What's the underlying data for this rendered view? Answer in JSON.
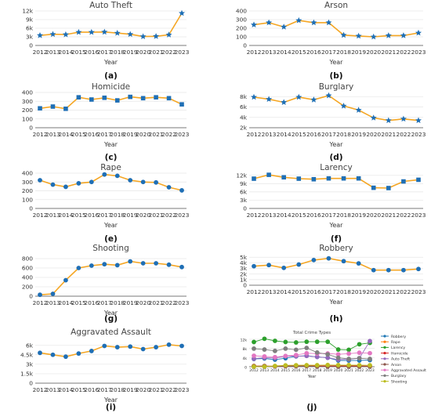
{
  "colors": {
    "line": "#f5a623",
    "marker": "#1f6fb5",
    "axis": "#555555",
    "grid": "#e6e6e6",
    "tick_text": "#333333",
    "title_text": "#444444"
  },
  "chart_data": [
    {
      "id": "a",
      "type": "line",
      "title": "Auto Theft",
      "xlabel": "Year",
      "ylabel": "",
      "panel_label": "(a)",
      "categories": [
        "2012",
        "2013",
        "2014",
        "2015",
        "2016",
        "2017",
        "2018",
        "2019",
        "2020",
        "2021",
        "2022",
        "2023"
      ],
      "values": [
        3500,
        3900,
        3800,
        4600,
        4600,
        4700,
        4300,
        3900,
        3100,
        3200,
        3700,
        11200
      ],
      "ylim": [
        0,
        12000
      ],
      "yticks": [
        0,
        3000,
        6000,
        9000,
        12000
      ],
      "ytick_labels": [
        "0",
        "3k",
        "6k",
        "9k",
        "12k"
      ],
      "marker": "star",
      "grid": true
    },
    {
      "id": "b",
      "type": "line",
      "title": "Arson",
      "xlabel": "Year",
      "ylabel": "",
      "panel_label": "(b)",
      "categories": [
        "2012",
        "2013",
        "2014",
        "2015",
        "2016",
        "2017",
        "2018",
        "2019",
        "2020",
        "2021",
        "2022",
        "2023"
      ],
      "values": [
        240,
        265,
        215,
        290,
        265,
        265,
        120,
        110,
        100,
        115,
        115,
        145
      ],
      "ylim": [
        0,
        400
      ],
      "yticks": [
        0,
        100,
        200,
        300,
        400
      ],
      "ytick_labels": [
        "0",
        "100",
        "200",
        "300",
        "400"
      ],
      "marker": "star",
      "grid": true
    },
    {
      "id": "c",
      "type": "line",
      "title": "Homicide",
      "xlabel": "Year",
      "ylabel": "",
      "panel_label": "(c)",
      "categories": [
        "2012",
        "2013",
        "2014",
        "2015",
        "2016",
        "2017",
        "2018",
        "2019",
        "2020",
        "2021",
        "2022",
        "2023"
      ],
      "values": [
        220,
        240,
        215,
        345,
        320,
        340,
        310,
        350,
        335,
        345,
        335,
        265
      ],
      "ylim": [
        0,
        400
      ],
      "yticks": [
        0,
        100,
        200,
        300,
        400
      ],
      "ytick_labels": [
        "0",
        "100",
        "200",
        "300",
        "400"
      ],
      "marker": "square",
      "grid": true
    },
    {
      "id": "d",
      "type": "line",
      "title": "Burglary",
      "xlabel": "Year",
      "ylabel": "",
      "panel_label": "(d)",
      "categories": [
        "2012",
        "2013",
        "2014",
        "2015",
        "2016",
        "2017",
        "2018",
        "2019",
        "2020",
        "2021",
        "2022",
        "2023"
      ],
      "values": [
        7900,
        7500,
        6900,
        7900,
        7400,
        8200,
        6200,
        5400,
        3900,
        3400,
        3700,
        3400
      ],
      "ylim": [
        2000,
        8800
      ],
      "yticks": [
        2000,
        4000,
        6000,
        8000
      ],
      "ytick_labels": [
        "2k",
        "4k",
        "6k",
        "8k"
      ],
      "marker": "star",
      "grid": true
    },
    {
      "id": "e",
      "type": "line",
      "title": "Rape",
      "xlabel": "Year",
      "ylabel": "",
      "panel_label": "(e)",
      "categories": [
        "2012",
        "2013",
        "2014",
        "2015",
        "2016",
        "2017",
        "2018",
        "2019",
        "2020",
        "2021",
        "2022",
        "2023"
      ],
      "values": [
        320,
        270,
        245,
        285,
        300,
        385,
        370,
        320,
        300,
        295,
        240,
        205
      ],
      "ylim": [
        0,
        400
      ],
      "yticks": [
        0,
        100,
        200,
        300,
        400
      ],
      "ytick_labels": [
        "0",
        "100",
        "200",
        "300",
        "400"
      ],
      "marker": "circle",
      "grid": true
    },
    {
      "id": "f",
      "type": "line",
      "title": "Larency",
      "xlabel": "Year",
      "ylabel": "",
      "panel_label": "(f)",
      "categories": [
        "2012",
        "2013",
        "2014",
        "2015",
        "2016",
        "2017",
        "2018",
        "2019",
        "2020",
        "2021",
        "2022",
        "2023"
      ],
      "values": [
        10800,
        12200,
        11300,
        10800,
        10600,
        10900,
        10900,
        10900,
        7500,
        7400,
        9800,
        10400
      ],
      "ylim": [
        0,
        12800
      ],
      "yticks": [
        0,
        3000,
        6000,
        9000,
        12000
      ],
      "ytick_labels": [
        "0",
        "3k",
        "6k",
        "9k",
        "12k"
      ],
      "marker": "square",
      "grid": true
    },
    {
      "id": "g",
      "type": "line",
      "title": "Shooting",
      "xlabel": "Year",
      "ylabel": "",
      "panel_label": "(g)",
      "categories": [
        "2012",
        "2013",
        "2014",
        "2015",
        "2016",
        "2017",
        "2018",
        "2019",
        "2020",
        "2021",
        "2022",
        "2023"
      ],
      "values": [
        30,
        50,
        340,
        600,
        650,
        680,
        660,
        740,
        700,
        700,
        670,
        620
      ],
      "ylim": [
        0,
        900
      ],
      "yticks": [
        0,
        200,
        400,
        600,
        800
      ],
      "ytick_labels": [
        "0",
        "200",
        "400",
        "600",
        "800"
      ],
      "marker": "circle",
      "grid": true
    },
    {
      "id": "h",
      "type": "line",
      "title": "Robbery",
      "xlabel": "Year",
      "ylabel": "",
      "panel_label": "(h)",
      "categories": [
        "2012",
        "2013",
        "2014",
        "2015",
        "2016",
        "2017",
        "2018",
        "2019",
        "2020",
        "2021",
        "2022",
        "2023"
      ],
      "values": [
        3400,
        3600,
        3100,
        3700,
        4500,
        4800,
        4300,
        3900,
        2700,
        2700,
        2700,
        2900
      ],
      "ylim": [
        0,
        5600
      ],
      "yticks": [
        0,
        1000,
        2000,
        3000,
        4000,
        5000
      ],
      "ytick_labels": [
        "0",
        "1k",
        "2k",
        "3k",
        "4k",
        "5k"
      ],
      "marker": "circle",
      "grid": true
    },
    {
      "id": "i",
      "type": "line",
      "title": "Aggravated Assault",
      "xlabel": "Year",
      "ylabel": "",
      "panel_label": "(i)",
      "categories": [
        "2012",
        "2013",
        "2014",
        "2015",
        "2016",
        "2017",
        "2018",
        "2019",
        "2020",
        "2021",
        "2022",
        "2023"
      ],
      "values": [
        4800,
        4500,
        4200,
        4700,
        5100,
        5900,
        5700,
        5800,
        5400,
        5700,
        6100,
        5900
      ],
      "ylim": [
        0,
        7200
      ],
      "yticks": [
        0,
        1500,
        3000,
        4500,
        6000
      ],
      "ytick_labels": [
        "0",
        "1.5k",
        "3k",
        "4.5k",
        "6k"
      ],
      "marker": "circle",
      "grid": true
    },
    {
      "id": "j",
      "type": "line",
      "title": "Total Crime Types",
      "xlabel": "Year",
      "ylabel": "",
      "panel_label": "(j)",
      "categories": [
        "2012",
        "2013",
        "2014",
        "2015",
        "2016",
        "2017",
        "2018",
        "2019",
        "2020",
        "2021",
        "2022",
        "2023"
      ],
      "ylim": [
        0,
        13000
      ],
      "yticks": [
        0,
        4000,
        8000,
        12000
      ],
      "ytick_labels": [
        "0",
        "4k",
        "8k",
        "12k"
      ],
      "legend_position": "right",
      "grid": true,
      "series": [
        {
          "name": "Robbery",
          "color": "#1f77b4",
          "values": [
            3400,
            3600,
            3100,
            3700,
            4500,
            4800,
            4300,
            3900,
            2700,
            2700,
            2700,
            2900
          ]
        },
        {
          "name": "Rape",
          "color": "#ff7f0e",
          "values": [
            320,
            270,
            245,
            285,
            300,
            385,
            370,
            320,
            300,
            295,
            240,
            205
          ]
        },
        {
          "name": "Larency",
          "color": "#2ca02c",
          "values": [
            10800,
            12200,
            11300,
            10800,
            10600,
            10900,
            10900,
            10900,
            7500,
            7400,
            9800,
            10400
          ]
        },
        {
          "name": "Homicide",
          "color": "#d62728",
          "values": [
            220,
            240,
            215,
            345,
            320,
            340,
            310,
            350,
            335,
            345,
            335,
            265
          ]
        },
        {
          "name": "Auto Theft",
          "color": "#9467bd",
          "values": [
            3500,
            3900,
            3800,
            4600,
            4600,
            4700,
            4300,
            3900,
            3100,
            3200,
            3700,
            11200
          ]
        },
        {
          "name": "Arson",
          "color": "#8c564b",
          "values": [
            240,
            265,
            215,
            290,
            265,
            265,
            120,
            110,
            100,
            115,
            115,
            145
          ]
        },
        {
          "name": "Aggravated Assault",
          "color": "#e377c2",
          "values": [
            4800,
            4500,
            4200,
            4700,
            5100,
            5900,
            5700,
            5800,
            5400,
            5700,
            6100,
            5900
          ]
        },
        {
          "name": "Burglary",
          "color": "#7f7f7f",
          "values": [
            7900,
            7500,
            6900,
            7900,
            7400,
            8200,
            6200,
            5400,
            3900,
            3400,
            3700,
            3400
          ]
        },
        {
          "name": "Shooting",
          "color": "#bcbd22",
          "values": [
            30,
            50,
            340,
            600,
            650,
            680,
            660,
            740,
            700,
            700,
            670,
            620
          ]
        }
      ]
    }
  ]
}
